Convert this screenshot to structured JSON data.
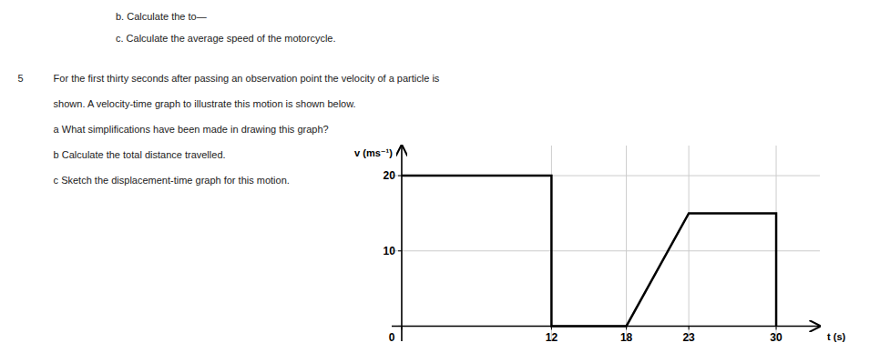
{
  "chart_data": {
    "type": "line",
    "x": [
      0,
      12,
      12,
      18,
      23,
      30,
      30
    ],
    "values": [
      20,
      20,
      0,
      0,
      15,
      15,
      0
    ],
    "color": "#000000",
    "xlabel": "t (s)",
    "ylabel": "v (ms⁻¹)",
    "xlim": [
      -0.8,
      33.5
    ],
    "ylim": [
      -2,
      24
    ],
    "xticks": [
      0,
      12,
      18,
      23,
      30
    ],
    "yticks": [
      0,
      10,
      20
    ],
    "grid": true,
    "annotations": [
      "b.  Calculate the to—",
      "c.  Calculate the average speed of the motorcycle.",
      "5",
      "For the first thirty seconds after passing an observation point the velocity of a particle is",
      "shown. A velocity-time graph to illustrate this motion is shown below.",
      "a  What simplifications have been made in drawing this graph?",
      "b  Calculate the total distance travelled.",
      "c  Sketch the displacement-time graph for this motion."
    ]
  }
}
